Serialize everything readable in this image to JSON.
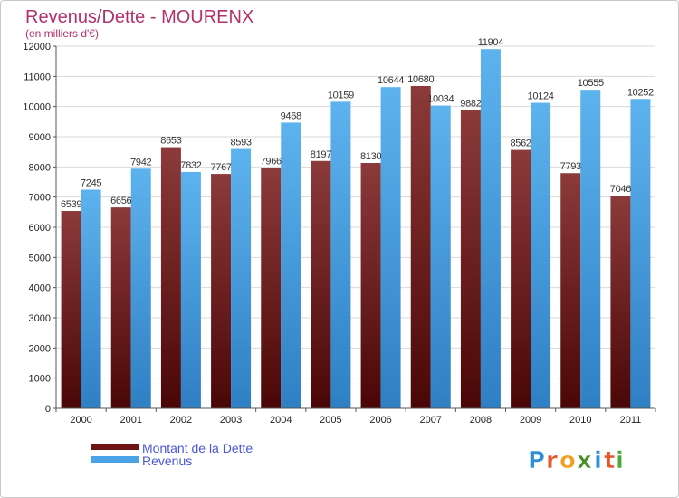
{
  "chart_data": {
    "type": "bar",
    "title": "Revenus/Dette - MOURENX",
    "subtitle": "(en milliers d'€)",
    "categories": [
      "2000",
      "2001",
      "2002",
      "2003",
      "2004",
      "2005",
      "2006",
      "2007",
      "2008",
      "2009",
      "2010",
      "2011"
    ],
    "series": [
      {
        "name": "Montant de la Dette",
        "color": "#6e1414",
        "values": [
          6539,
          6656,
          8653,
          7767,
          7966,
          8197,
          8130,
          10680,
          9882,
          8562,
          7793,
          7046
        ]
      },
      {
        "name": "Revenus",
        "color": "#4aa3e6",
        "values": [
          7245,
          7942,
          7832,
          8593,
          9468,
          10159,
          10644,
          10034,
          11904,
          10124,
          10555,
          10252
        ]
      }
    ],
    "ylim": [
      0,
      12000
    ],
    "yticks": [
      0,
      1000,
      2000,
      3000,
      4000,
      5000,
      6000,
      7000,
      8000,
      9000,
      10000,
      11000,
      12000
    ],
    "grid": true,
    "legend": "bottom-left"
  },
  "brand": {
    "letters": [
      "P",
      "r",
      "o",
      "x",
      "i",
      "t",
      "i"
    ],
    "colors": [
      "#2d8fd9",
      "#e8562a",
      "#f0a020",
      "#4a8f2a",
      "#2d8fd9",
      "#e8562a",
      "#4aa83a"
    ]
  }
}
